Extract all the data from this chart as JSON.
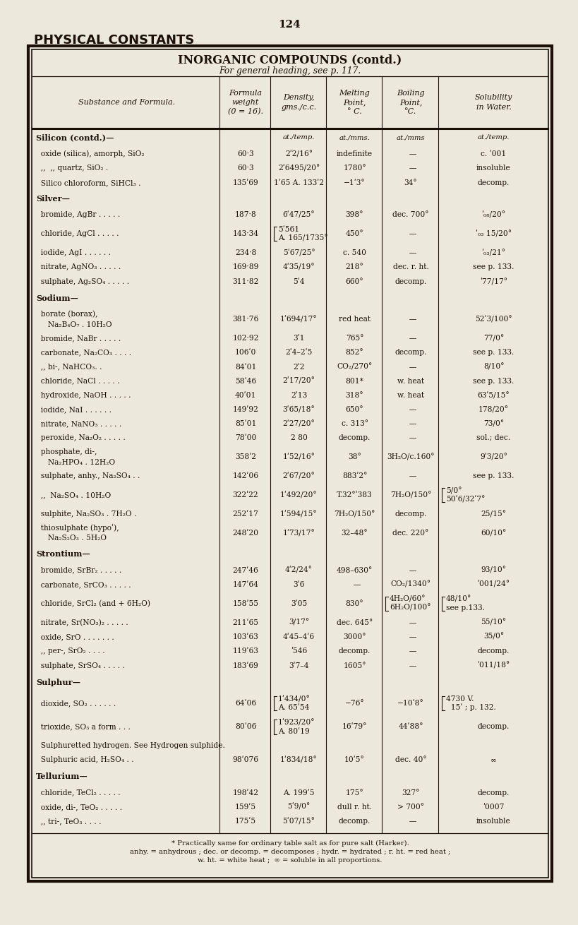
{
  "page_number": "124",
  "page_title": "PHYSICAL CONSTANTS",
  "table_title": "INORGANIC COMPOUNDS (contd.)",
  "table_subtitle": "For general heading, see p. 117.",
  "bg_color": "#ede8dc",
  "text_color": "#1a1008",
  "footnote_lines": [
    "* Practically same for ordinary table salt as for pure salt (Harker).",
    "anhy. = anhydrous ; dec. or decomp. = decomposes ; hydr. = hydrated ; r. ht. = red heat ;",
    "w. ht. = white heat ;  ∞ = soluble in all proportions."
  ],
  "col_headers": [
    "Substance and Formula.",
    "Formula\nweight\n(0 = 16).",
    "Density,\ngms./c.c.",
    "Melting\nPoint,\n° C.",
    "Boiling\nPoint,\n°C.",
    "Solubility\nin Water."
  ]
}
